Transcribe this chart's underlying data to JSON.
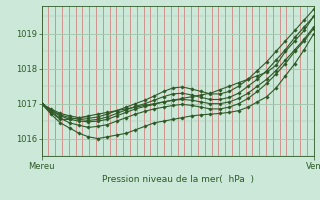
{
  "bg_color": "#cce8d8",
  "line_color": "#2d5a27",
  "grid_color_v": "#d07070",
  "grid_color_h": "#a8c8b0",
  "xlabel": "Pression niveau de la mer(  hPa  )",
  "xtick_labels": [
    "Mereu",
    "Ven"
  ],
  "xtick_positions": [
    0,
    1
  ],
  "ylim": [
    1015.5,
    1019.8
  ],
  "yticks": [
    1016,
    1017,
    1018,
    1019
  ],
  "n_vgrid": 40,
  "series": [
    [
      1017.0,
      1016.75,
      1016.55,
      1016.55,
      1016.6,
      1016.65,
      1016.7,
      1016.75,
      1016.8,
      1016.85,
      1016.9,
      1016.95,
      1017.0,
      1017.05,
      1017.1,
      1017.15,
      1017.2,
      1017.25,
      1017.3,
      1017.4,
      1017.5,
      1017.6,
      1017.7,
      1017.8,
      1017.9,
      1018.1,
      1018.5,
      1018.8,
      1019.1,
      1019.5
    ],
    [
      1017.0,
      1016.7,
      1016.45,
      1016.3,
      1016.15,
      1016.05,
      1016.0,
      1016.05,
      1016.1,
      1016.15,
      1016.25,
      1016.35,
      1016.45,
      1016.5,
      1016.55,
      1016.6,
      1016.65,
      1016.68,
      1016.7,
      1016.72,
      1016.75,
      1016.8,
      1016.9,
      1017.05,
      1017.2,
      1017.45,
      1017.8,
      1018.15,
      1018.55,
      1019.0
    ],
    [
      1017.0,
      1016.8,
      1016.65,
      1016.55,
      1016.5,
      1016.48,
      1016.5,
      1016.55,
      1016.65,
      1016.75,
      1016.85,
      1016.92,
      1016.98,
      1017.05,
      1017.1,
      1017.12,
      1017.1,
      1017.05,
      1017.0,
      1017.0,
      1017.05,
      1017.15,
      1017.3,
      1017.5,
      1017.7,
      1017.95,
      1018.25,
      1018.55,
      1018.85,
      1019.2
    ],
    [
      1017.0,
      1016.78,
      1016.58,
      1016.45,
      1016.38,
      1016.32,
      1016.35,
      1016.4,
      1016.5,
      1016.6,
      1016.7,
      1016.78,
      1016.85,
      1016.9,
      1016.95,
      1016.98,
      1016.95,
      1016.9,
      1016.85,
      1016.85,
      1016.9,
      1017.0,
      1017.15,
      1017.35,
      1017.58,
      1017.85,
      1018.15,
      1018.5,
      1018.8,
      1019.15
    ],
    [
      1017.0,
      1016.82,
      1016.68,
      1016.6,
      1016.55,
      1016.52,
      1016.55,
      1016.62,
      1016.72,
      1016.82,
      1016.92,
      1017.0,
      1017.1,
      1017.2,
      1017.28,
      1017.3,
      1017.25,
      1017.18,
      1017.12,
      1017.12,
      1017.18,
      1017.3,
      1017.5,
      1017.7,
      1017.95,
      1018.25,
      1018.55,
      1018.9,
      1019.2,
      1019.5
    ],
    [
      1017.0,
      1016.85,
      1016.72,
      1016.65,
      1016.6,
      1016.58,
      1016.62,
      1016.7,
      1016.8,
      1016.9,
      1017.0,
      1017.1,
      1017.22,
      1017.35,
      1017.45,
      1017.48,
      1017.42,
      1017.35,
      1017.28,
      1017.28,
      1017.35,
      1017.5,
      1017.7,
      1017.95,
      1018.2,
      1018.5,
      1018.8,
      1019.1,
      1019.4,
      1019.7
    ]
  ]
}
